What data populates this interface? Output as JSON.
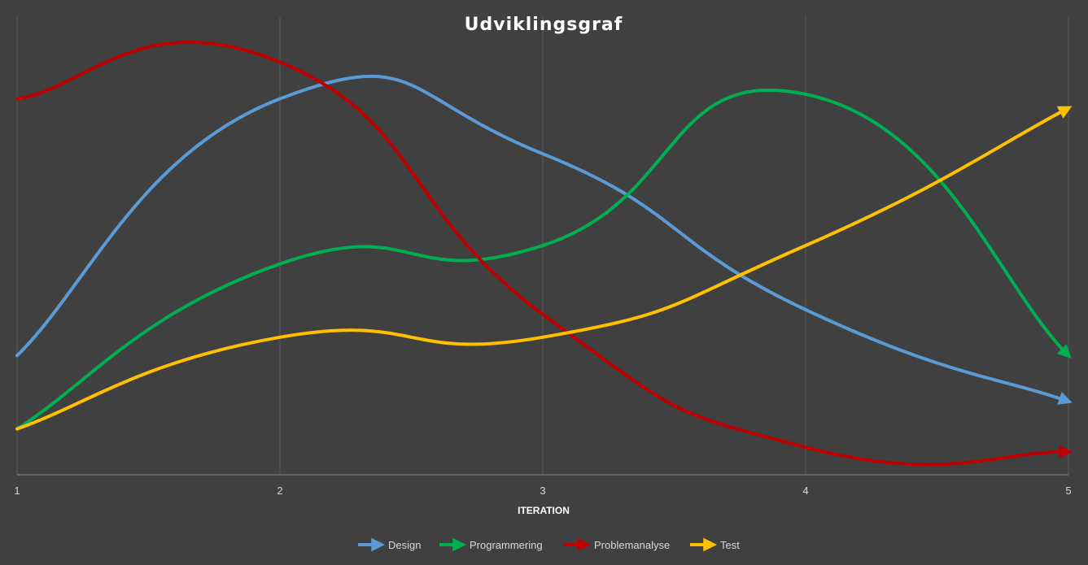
{
  "chart_data": {
    "type": "line",
    "title": "Udviklingsgraf",
    "xlabel": "ITERATION",
    "ylabel": "",
    "x": [
      1,
      2,
      3,
      4,
      5
    ],
    "xlim": [
      1,
      5
    ],
    "ylim": [
      0,
      10
    ],
    "grid": "vertical",
    "smooth": true,
    "legend_position": "bottom",
    "background_color": "#404040",
    "series": [
      {
        "name": "Design",
        "color": "#5b9bd5",
        "values": [
          2.6,
          8.2,
          7.0,
          3.6,
          1.6
        ]
      },
      {
        "name": "Programmering",
        "color": "#00b050",
        "values": [
          1.0,
          4.6,
          5.0,
          8.3,
          2.6
        ]
      },
      {
        "name": "Problemanalyse",
        "color": "#c00000",
        "values": [
          8.2,
          9.0,
          3.5,
          0.6,
          0.5
        ]
      },
      {
        "name": "Test",
        "color": "#ffc000",
        "values": [
          1.0,
          3.0,
          3.0,
          5.0,
          8.0
        ]
      }
    ]
  }
}
